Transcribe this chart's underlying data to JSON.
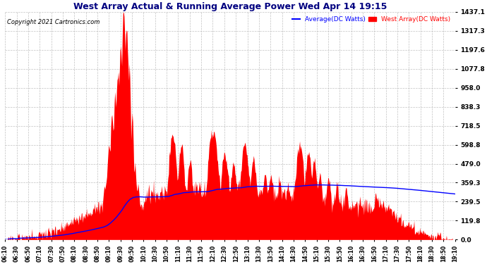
{
  "title": "West Array Actual & Running Average Power Wed Apr 14 19:15",
  "copyright": "Copyright 2021 Cartronics.com",
  "legend_avg": "Average(DC Watts)",
  "legend_west": "West Array(DC Watts)",
  "yticks": [
    0.0,
    119.8,
    239.5,
    359.3,
    479.0,
    598.8,
    718.5,
    838.3,
    958.0,
    1077.8,
    1197.6,
    1317.3,
    1437.1
  ],
  "ylim": [
    0,
    1437.1
  ],
  "bg_color": "#ffffff",
  "plot_bg_color": "#ffffff",
  "grid_color": "#bbbbbb",
  "fill_color": "#ff0000",
  "avg_line_color": "#0000ff",
  "title_color": "#000080",
  "copyright_color": "#000000",
  "xtick_start_hour": 6,
  "xtick_start_min": 10,
  "num_xticks": 40
}
